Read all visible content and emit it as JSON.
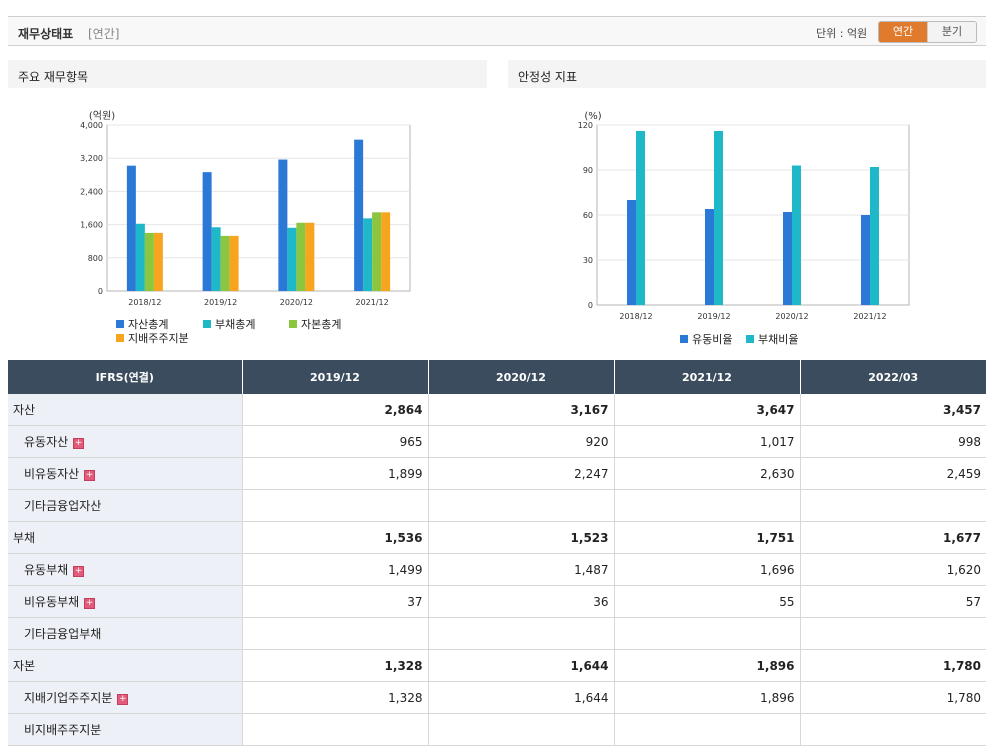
{
  "header": {
    "title": "재무상태표",
    "period_note": "[연간]",
    "unit_label": "단위 : 억원",
    "toggle_annual": "연간",
    "toggle_quarterly": "분기"
  },
  "panels": {
    "left_title": "주요 재무항목",
    "right_title": "안정성 지표"
  },
  "colors": {
    "accent": "#e07a2d",
    "header_bg": "#3a4c5e",
    "label_bg": "#eef0f7"
  },
  "chart_data": [
    {
      "type": "bar",
      "title": "주요 재무항목",
      "ylabel": "(억원)",
      "ylim": [
        0,
        4000
      ],
      "yticks": [
        0,
        800,
        1600,
        2400,
        3200,
        4000
      ],
      "ytick_labels": [
        "0",
        "800",
        "1,600",
        "2,400",
        "3,200",
        "4,000"
      ],
      "categories": [
        "2018/12",
        "2019/12",
        "2020/12",
        "2021/12"
      ],
      "series": [
        {
          "name": "자산총계",
          "color": "#2b79d6",
          "values": [
            3020,
            2864,
            3167,
            3647
          ]
        },
        {
          "name": "부채총계",
          "color": "#1fb8c8",
          "values": [
            1620,
            1536,
            1523,
            1751
          ]
        },
        {
          "name": "자본총계",
          "color": "#8cc63f",
          "values": [
            1400,
            1328,
            1644,
            1896
          ]
        },
        {
          "name": "지배주주지분",
          "color": "#f7a51e",
          "values": [
            1400,
            1328,
            1644,
            1896
          ]
        }
      ]
    },
    {
      "type": "bar",
      "title": "안정성 지표",
      "ylabel": "(%)",
      "ylim": [
        0,
        120
      ],
      "yticks": [
        0,
        30,
        60,
        90,
        120
      ],
      "ytick_labels": [
        "0",
        "30",
        "60",
        "90",
        "120"
      ],
      "categories": [
        "2018/12",
        "2019/12",
        "2020/12",
        "2021/12"
      ],
      "series": [
        {
          "name": "유동비율",
          "color": "#2b79d6",
          "values": [
            70,
            64,
            62,
            60
          ]
        },
        {
          "name": "부채비율",
          "color": "#1fb8c8",
          "values": [
            116,
            116,
            93,
            92
          ]
        }
      ]
    }
  ],
  "table": {
    "columns": [
      "IFRS(연결)",
      "2019/12",
      "2020/12",
      "2021/12",
      "2022/03"
    ],
    "rows": [
      {
        "label": "자산",
        "major": true,
        "expand": false,
        "values": [
          "2,864",
          "3,167",
          "3,647",
          "3,457"
        ]
      },
      {
        "label": "유동자산",
        "major": false,
        "expand": true,
        "values": [
          "965",
          "920",
          "1,017",
          "998"
        ]
      },
      {
        "label": "비유동자산",
        "major": false,
        "expand": true,
        "values": [
          "1,899",
          "2,247",
          "2,630",
          "2,459"
        ]
      },
      {
        "label": "기타금융업자산",
        "major": false,
        "expand": false,
        "values": [
          "",
          "",
          "",
          ""
        ]
      },
      {
        "label": "부채",
        "major": true,
        "expand": false,
        "values": [
          "1,536",
          "1,523",
          "1,751",
          "1,677"
        ]
      },
      {
        "label": "유동부채",
        "major": false,
        "expand": true,
        "values": [
          "1,499",
          "1,487",
          "1,696",
          "1,620"
        ]
      },
      {
        "label": "비유동부채",
        "major": false,
        "expand": true,
        "values": [
          "37",
          "36",
          "55",
          "57"
        ]
      },
      {
        "label": "기타금융업부채",
        "major": false,
        "expand": false,
        "values": [
          "",
          "",
          "",
          ""
        ]
      },
      {
        "label": "자본",
        "major": true,
        "expand": false,
        "values": [
          "1,328",
          "1,644",
          "1,896",
          "1,780"
        ]
      },
      {
        "label": "지배기업주주지분",
        "major": false,
        "expand": true,
        "values": [
          "1,328",
          "1,644",
          "1,896",
          "1,780"
        ]
      },
      {
        "label": "비지배주주지분",
        "major": false,
        "expand": false,
        "values": [
          "",
          "",
          "",
          ""
        ]
      }
    ]
  }
}
